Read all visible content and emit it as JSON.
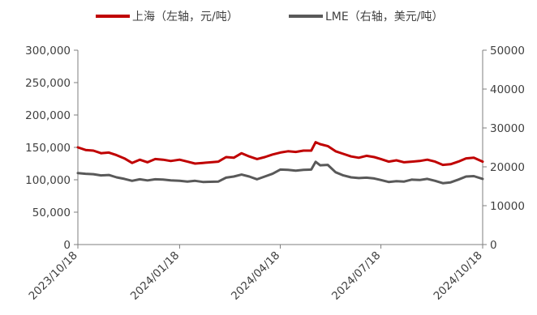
{
  "chart_data": {
    "type": "line",
    "legend_position": "top-center",
    "grid": false,
    "x_ticks": [
      "2023/10/18",
      "2024/01/18",
      "2024/04/18",
      "2024/07/18",
      "2024/10/18"
    ],
    "y_left": {
      "min": 0,
      "max": 300000,
      "ticks": [
        "0",
        "50,000",
        "100,000",
        "150,000",
        "200,000",
        "250,000",
        "300,000"
      ]
    },
    "y_right": {
      "min": 0,
      "max": 50000,
      "ticks": [
        "0",
        "10000",
        "20000",
        "30000",
        "40000",
        "50000"
      ]
    },
    "series": [
      {
        "name": "上海（左轴，元/吨）",
        "axis": "left",
        "color": "#c00000",
        "points": [
          [
            "2023/10/18",
            150000
          ],
          [
            "2023/10/25",
            146000
          ],
          [
            "2023/11/01",
            145000
          ],
          [
            "2023/11/08",
            141000
          ],
          [
            "2023/11/15",
            142000
          ],
          [
            "2023/11/22",
            138000
          ],
          [
            "2023/11/29",
            133000
          ],
          [
            "2023/12/06",
            126000
          ],
          [
            "2023/12/13",
            131000
          ],
          [
            "2023/12/20",
            127000
          ],
          [
            "2023/12/27",
            132000
          ],
          [
            "2024/01/03",
            131000
          ],
          [
            "2024/01/10",
            129000
          ],
          [
            "2024/01/18",
            131000
          ],
          [
            "2024/01/25",
            128000
          ],
          [
            "2024/02/01",
            125000
          ],
          [
            "2024/02/08",
            126000
          ],
          [
            "2024/02/22",
            128000
          ],
          [
            "2024/02/29",
            135000
          ],
          [
            "2024/03/07",
            134000
          ],
          [
            "2024/03/14",
            141000
          ],
          [
            "2024/03/21",
            136000
          ],
          [
            "2024/03/28",
            132000
          ],
          [
            "2024/04/04",
            135000
          ],
          [
            "2024/04/11",
            139000
          ],
          [
            "2024/04/18",
            142000
          ],
          [
            "2024/04/25",
            144000
          ],
          [
            "2024/05/02",
            143000
          ],
          [
            "2024/05/09",
            145000
          ],
          [
            "2024/05/16",
            145000
          ],
          [
            "2024/05/20",
            158000
          ],
          [
            "2024/05/24",
            155000
          ],
          [
            "2024/05/31",
            152000
          ],
          [
            "2024/06/07",
            144000
          ],
          [
            "2024/06/14",
            140000
          ],
          [
            "2024/06/21",
            136000
          ],
          [
            "2024/06/28",
            134000
          ],
          [
            "2024/07/05",
            137000
          ],
          [
            "2024/07/12",
            135000
          ],
          [
            "2024/07/18",
            132000
          ],
          [
            "2024/07/25",
            128000
          ],
          [
            "2024/08/01",
            130000
          ],
          [
            "2024/08/08",
            127000
          ],
          [
            "2024/08/15",
            128000
          ],
          [
            "2024/08/22",
            129000
          ],
          [
            "2024/08/29",
            131000
          ],
          [
            "2024/09/05",
            128000
          ],
          [
            "2024/09/12",
            123000
          ],
          [
            "2024/09/19",
            124000
          ],
          [
            "2024/09/26",
            128000
          ],
          [
            "2024/10/03",
            133000
          ],
          [
            "2024/10/10",
            134000
          ],
          [
            "2024/10/18",
            128000
          ]
        ]
      },
      {
        "name": "LME（右轴，美元/吨）",
        "axis": "right",
        "color": "#595959",
        "points": [
          [
            "2023/10/18",
            18400
          ],
          [
            "2023/10/25",
            18200
          ],
          [
            "2023/11/01",
            18100
          ],
          [
            "2023/11/08",
            17800
          ],
          [
            "2023/11/15",
            17900
          ],
          [
            "2023/11/22",
            17300
          ],
          [
            "2023/11/29",
            16900
          ],
          [
            "2023/12/06",
            16400
          ],
          [
            "2023/12/13",
            16800
          ],
          [
            "2023/12/20",
            16500
          ],
          [
            "2023/12/27",
            16800
          ],
          [
            "2024/01/03",
            16700
          ],
          [
            "2024/01/10",
            16500
          ],
          [
            "2024/01/18",
            16400
          ],
          [
            "2024/01/25",
            16200
          ],
          [
            "2024/02/01",
            16400
          ],
          [
            "2024/02/08",
            16100
          ],
          [
            "2024/02/22",
            16200
          ],
          [
            "2024/02/29",
            17200
          ],
          [
            "2024/03/07",
            17500
          ],
          [
            "2024/03/14",
            18000
          ],
          [
            "2024/03/21",
            17500
          ],
          [
            "2024/03/28",
            16800
          ],
          [
            "2024/04/04",
            17500
          ],
          [
            "2024/04/11",
            18200
          ],
          [
            "2024/04/18",
            19300
          ],
          [
            "2024/04/25",
            19200
          ],
          [
            "2024/05/02",
            19000
          ],
          [
            "2024/05/09",
            19200
          ],
          [
            "2024/05/16",
            19300
          ],
          [
            "2024/05/20",
            21300
          ],
          [
            "2024/05/24",
            20400
          ],
          [
            "2024/05/31",
            20500
          ],
          [
            "2024/06/07",
            18600
          ],
          [
            "2024/06/14",
            17800
          ],
          [
            "2024/06/21",
            17300
          ],
          [
            "2024/06/28",
            17100
          ],
          [
            "2024/07/05",
            17200
          ],
          [
            "2024/07/12",
            17000
          ],
          [
            "2024/07/18",
            16600
          ],
          [
            "2024/07/25",
            16100
          ],
          [
            "2024/08/01",
            16300
          ],
          [
            "2024/08/08",
            16200
          ],
          [
            "2024/08/15",
            16700
          ],
          [
            "2024/08/22",
            16600
          ],
          [
            "2024/08/29",
            16900
          ],
          [
            "2024/09/05",
            16400
          ],
          [
            "2024/09/12",
            15800
          ],
          [
            "2024/09/19",
            16000
          ],
          [
            "2024/09/26",
            16700
          ],
          [
            "2024/10/03",
            17500
          ],
          [
            "2024/10/10",
            17600
          ],
          [
            "2024/10/18",
            16900
          ]
        ]
      }
    ]
  }
}
